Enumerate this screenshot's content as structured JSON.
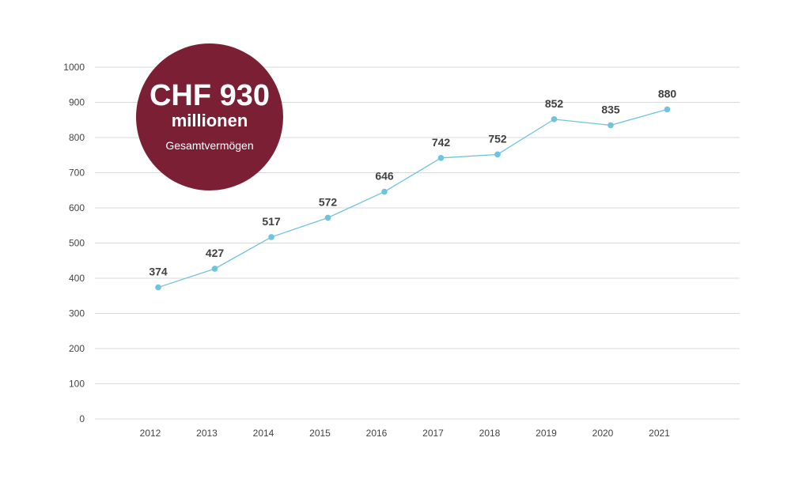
{
  "colors": {
    "line": "#6ec3df",
    "badge": "#7b1f35",
    "grid": "#d9d9d9"
  },
  "badge": {
    "amount": "CHF 930",
    "unit": "millionen",
    "caption": "Gesamtvermögen"
  },
  "chart_data": {
    "type": "line",
    "title": "",
    "xlabel": "",
    "ylabel": "",
    "x": [
      "2012",
      "2013",
      "2014",
      "2015",
      "2016",
      "2017",
      "2018",
      "2019",
      "2020",
      "2021"
    ],
    "series": [
      {
        "values": [
          374,
          427,
          517,
          572,
          646,
          742,
          752,
          852,
          835,
          880
        ]
      }
    ],
    "ylim": [
      0,
      1000
    ],
    "yticks": [
      0,
      100,
      200,
      300,
      400,
      500,
      600,
      700,
      800,
      900,
      1000
    ],
    "grid": true,
    "legend": "none"
  }
}
